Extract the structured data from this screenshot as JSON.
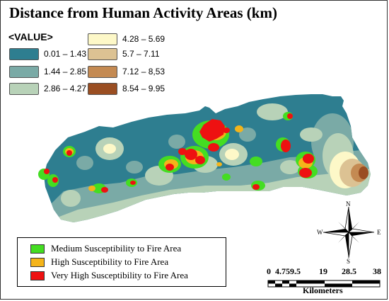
{
  "title": "Distance from Human Activity Areas (km)",
  "value_legend": {
    "header": "<VALUE>",
    "classes": [
      {
        "label": "0.01 – 1.43",
        "color": "#2e7e90"
      },
      {
        "label": "1.44 – 2.85",
        "color": "#7aaaa6"
      },
      {
        "label": "2.86 – 4.27",
        "color": "#b8d2b8"
      },
      {
        "label": "4.28 – 5.69",
        "color": "#fdf8c8"
      },
      {
        "label": "5.7 – 7.11",
        "color": "#dcc293"
      },
      {
        "label": "7.12 – 8,53",
        "color": "#c48a52"
      },
      {
        "label": "8.54 – 9.95",
        "color": "#9a4e22"
      }
    ]
  },
  "susceptibility_legend": [
    {
      "label": "Medium Susceptibility to Fire Area",
      "color": "#44dd22"
    },
    {
      "label": "High Susceptibility to Fire Area",
      "color": "#f4b41a"
    },
    {
      "label": "Very High Susceptibility  to Fire Area",
      "color": "#ee1111"
    }
  ],
  "north_arrow": {
    "icon": "north-arrow-icon",
    "n": "N",
    "s": "S",
    "e": "E",
    "w": "W"
  },
  "scale_bar": {
    "ticks": [
      "0",
      "4.759.5",
      "19",
      "28.5",
      "38"
    ],
    "unit": "Kilometers"
  }
}
